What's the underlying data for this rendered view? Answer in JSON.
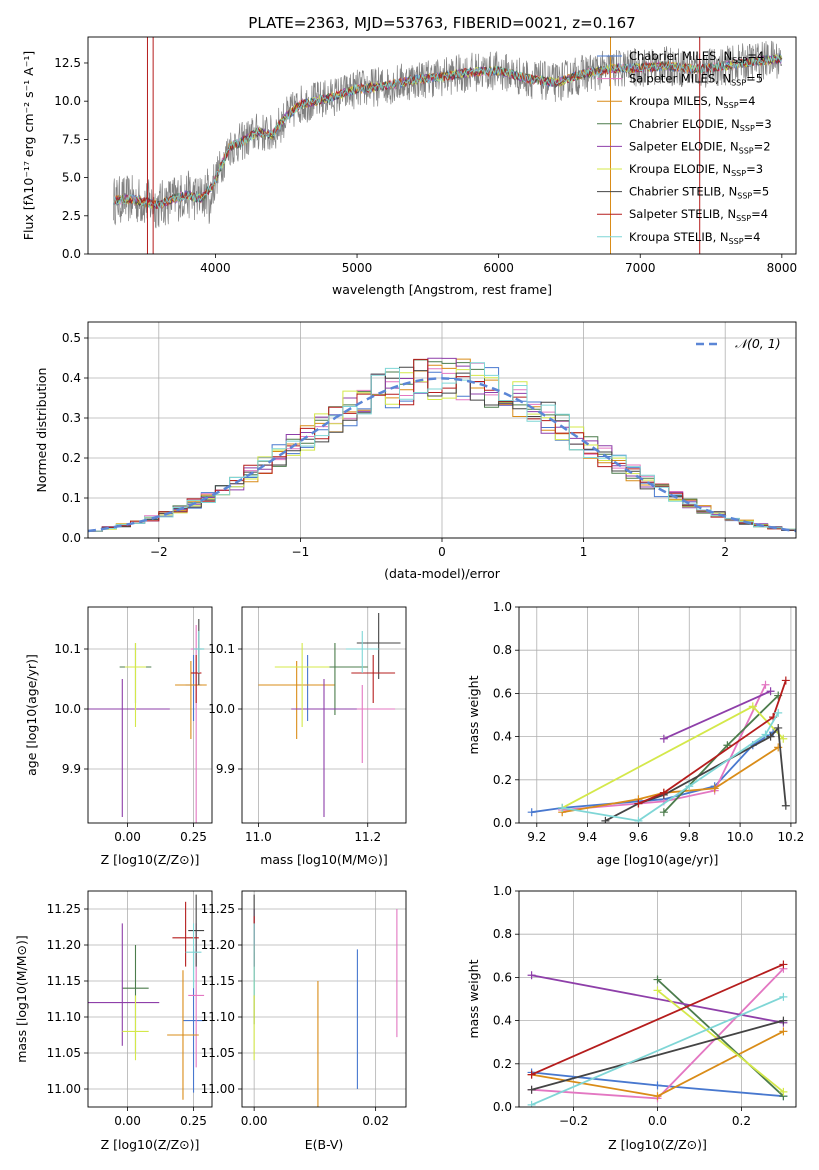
{
  "chart_data": [
    {
      "type": "line",
      "title": "PLATE=2363, MJD=53763, FIBERID=0021, z=0.167",
      "xlabel": "wavelength [Angstrom, rest frame]",
      "ylabel": "Flux [fλ10⁻¹⁷ erg cm⁻² s⁻¹ A⁻¹]",
      "xlim": [
        3100,
        8100
      ],
      "ylim": [
        0,
        14.2
      ],
      "xticks": [
        4000,
        5000,
        6000,
        7000,
        8000
      ],
      "yticks": [
        0.0,
        2.5,
        5.0,
        7.5,
        10.0,
        12.5
      ],
      "ytick_labels": [
        "0.0",
        "2.5",
        "5.0",
        "7.5",
        "10.0",
        "12.5"
      ],
      "legend_position": "right",
      "series": [
        {
          "name": "Chabrier MILES, N_SSP=4",
          "color": "#4878cf"
        },
        {
          "name": "Salpeter MILES, N_SSP=5",
          "color": "#e377c2"
        },
        {
          "name": "Kroupa MILES, N_SSP=4",
          "color": "#d98c18"
        },
        {
          "name": "Chabrier ELODIE, N_SSP=3",
          "color": "#4c7c4c"
        },
        {
          "name": "Salpeter ELODIE, N_SSP=2",
          "color": "#8e3fa9"
        },
        {
          "name": "Kroupa ELODIE, N_SSP=3",
          "color": "#d4e84a"
        },
        {
          "name": "Chabrier STELIB, N_SSP=5",
          "color": "#444444"
        },
        {
          "name": "Salpeter STELIB, N_SSP=4",
          "color": "#b51d1d"
        },
        {
          "name": "Kroupa STELIB, N_SSP=4",
          "color": "#7fd6d6"
        }
      ],
      "spectrum_anchors": {
        "wavelength": [
          3280,
          3400,
          3500,
          3600,
          3700,
          3800,
          3900,
          3980,
          4100,
          4200,
          4300,
          4400,
          4500,
          4600,
          4800,
          5000,
          5200,
          5400,
          5600,
          5800,
          6000,
          6200,
          6400,
          6600,
          6800,
          7000,
          7200,
          7400,
          7600,
          7800,
          8000
        ],
        "flux": [
          3.5,
          3.6,
          3.4,
          3.2,
          3.6,
          3.9,
          3.6,
          4.5,
          7.0,
          7.4,
          8.0,
          7.8,
          9.0,
          9.8,
          10.2,
          10.8,
          11.0,
          11.4,
          11.6,
          11.9,
          12.0,
          11.5,
          11.2,
          11.8,
          12.1,
          12.2,
          12.3,
          12.1,
          12.3,
          12.6,
          12.8
        ]
      }
    },
    {
      "type": "histogram",
      "xlabel": "(data-model)/error",
      "ylabel": "Normed distribution",
      "xlim": [
        -2.5,
        2.5
      ],
      "ylim": [
        0,
        0.54
      ],
      "xticks": [
        -2,
        -1,
        0,
        1,
        2
      ],
      "xtick_labels": [
        "−2",
        "−1",
        "0",
        "1",
        "2"
      ],
      "yticks": [
        0.0,
        0.1,
        0.2,
        0.3,
        0.4,
        0.5
      ],
      "ytick_labels": [
        "0.0",
        "0.1",
        "0.2",
        "0.3",
        "0.4",
        "0.5"
      ],
      "grid": true,
      "legend": [
        "𝒩(0, 1)"
      ],
      "legend_position": "top-right",
      "bin_width": 0.1,
      "reference_curve": "normal(0,1)"
    },
    {
      "type": "scatter",
      "xlabel": "Z [log10(Z/Z⊙)]",
      "ylabel": "age [log10(age/yr)]",
      "xlim": [
        -0.15,
        0.32
      ],
      "ylim": [
        9.81,
        10.17
      ],
      "xticks": [
        0.0,
        0.25
      ],
      "xtick_labels": [
        "0.00",
        "0.25"
      ],
      "yticks": [
        9.9,
        10.0,
        10.1
      ],
      "ytick_labels": [
        "9.9",
        "10.0",
        "10.1"
      ],
      "grid": true,
      "points": [
        {
          "x": 0.25,
          "y": 10.04,
          "xerr": 0.03,
          "yerr": [
            0.06,
            0.05
          ],
          "color": "#4878cf"
        },
        {
          "x": 0.26,
          "y": 10.1,
          "xerr": 0.02,
          "yerr": [
            0.3,
            0.04
          ],
          "color": "#e377c2"
        },
        {
          "x": 0.24,
          "y": 10.04,
          "xerr": 0.06,
          "yerr": [
            0.09,
            0.04
          ],
          "color": "#d98c18"
        },
        {
          "x": 0.03,
          "y": 10.07,
          "xerr": 0.06,
          "yerr": [
            0.06,
            0.04
          ],
          "color": "#4c7c4c"
        },
        {
          "x": -0.02,
          "y": 10.0,
          "xerr": 0.18,
          "yerr": [
            0.18,
            0.05
          ],
          "color": "#8e3fa9"
        },
        {
          "x": 0.03,
          "y": 10.07,
          "xerr": 0.04,
          "yerr": [
            0.1,
            0.04
          ],
          "color": "#d4e84a"
        },
        {
          "x": 0.27,
          "y": 10.1,
          "xerr": 0.02,
          "yerr": [
            0.06,
            0.05
          ],
          "color": "#444444"
        },
        {
          "x": 0.26,
          "y": 10.06,
          "xerr": 0.02,
          "yerr": [
            0.05,
            0.03
          ],
          "color": "#b51d1d"
        },
        {
          "x": 0.27,
          "y": 10.1,
          "xerr": 0.02,
          "yerr": [
            0.04,
            0.03
          ],
          "color": "#7fd6d6"
        }
      ]
    },
    {
      "type": "scatter",
      "xlabel": "mass [log10(M/M⊙)]",
      "ylabel": "",
      "xlim": [
        10.97,
        11.27
      ],
      "ylim": [
        9.81,
        10.17
      ],
      "xticks": [
        11.0,
        11.2
      ],
      "xtick_labels": [
        "11.0",
        "11.2"
      ],
      "yticks": [
        9.9,
        10.0,
        10.1
      ],
      "ytick_labels": [
        "9.9",
        "10.0",
        "10.1"
      ],
      "grid": true,
      "points": [
        {
          "x": 11.09,
          "y": 10.04,
          "xerr": 0.05,
          "yerr": [
            0.06,
            0.05
          ],
          "color": "#4878cf"
        },
        {
          "x": 11.19,
          "y": 10.0,
          "xerr": 0.06,
          "yerr": [
            0.09,
            0.04
          ],
          "color": "#e377c2"
        },
        {
          "x": 11.07,
          "y": 10.04,
          "xerr": 0.07,
          "yerr": [
            0.09,
            0.04
          ],
          "color": "#d98c18"
        },
        {
          "x": 11.14,
          "y": 10.07,
          "xerr": 0.06,
          "yerr": [
            0.08,
            0.04
          ],
          "color": "#4c7c4c"
        },
        {
          "x": 11.12,
          "y": 10.0,
          "xerr": 0.06,
          "yerr": [
            0.18,
            0.05
          ],
          "color": "#8e3fa9"
        },
        {
          "x": 11.08,
          "y": 10.07,
          "xerr": 0.05,
          "yerr": [
            0.1,
            0.04
          ],
          "color": "#d4e84a"
        },
        {
          "x": 11.22,
          "y": 10.11,
          "xerr": 0.04,
          "yerr": [
            0.06,
            0.05
          ],
          "color": "#444444"
        },
        {
          "x": 11.21,
          "y": 10.06,
          "xerr": 0.04,
          "yerr": [
            0.05,
            0.03
          ],
          "color": "#b51d1d"
        },
        {
          "x": 11.19,
          "y": 10.1,
          "xerr": 0.03,
          "yerr": [
            0.04,
            0.03
          ],
          "color": "#7fd6d6"
        }
      ]
    },
    {
      "type": "line",
      "xlabel": "age [log10(age/yr)]",
      "ylabel": "mass weight",
      "xlim": [
        9.13,
        10.22
      ],
      "ylim": [
        0,
        1
      ],
      "xticks": [
        9.2,
        9.4,
        9.6,
        9.8,
        10.0,
        10.2
      ],
      "xtick_labels": [
        "9.2",
        "9.4",
        "9.6",
        "9.8",
        "10.0",
        "10.2"
      ],
      "yticks": [
        0.0,
        0.2,
        0.4,
        0.6,
        0.8,
        1.0
      ],
      "ytick_labels": [
        "0.0",
        "0.2",
        "0.4",
        "0.6",
        "0.8",
        "1.0"
      ],
      "grid": true,
      "series": [
        {
          "color": "#4878cf",
          "x": [
            9.18,
            9.3,
            9.7,
            9.9,
            10.05,
            10.13
          ],
          "y": [
            0.05,
            0.07,
            0.11,
            0.17,
            0.36,
            0.42
          ]
        },
        {
          "color": "#e377c2",
          "x": [
            9.3,
            9.7,
            9.9,
            10.1
          ],
          "y": [
            0.06,
            0.1,
            0.15,
            0.64
          ]
        },
        {
          "color": "#d98c18",
          "x": [
            9.3,
            9.6,
            9.7,
            9.9,
            10.15
          ],
          "y": [
            0.05,
            0.11,
            0.14,
            0.16,
            0.35
          ]
        },
        {
          "color": "#4c7c4c",
          "x": [
            9.7,
            9.95,
            10.15
          ],
          "y": [
            0.05,
            0.36,
            0.59
          ]
        },
        {
          "color": "#8e3fa9",
          "x": [
            9.7,
            10.12
          ],
          "y": [
            0.39,
            0.61
          ]
        },
        {
          "color": "#d4e84a",
          "x": [
            9.3,
            10.05,
            10.17
          ],
          "y": [
            0.07,
            0.54,
            0.39
          ]
        },
        {
          "color": "#444444",
          "x": [
            9.47,
            9.6,
            9.7,
            10.12,
            10.15,
            10.18
          ],
          "y": [
            0.01,
            0.09,
            0.13,
            0.4,
            0.44,
            0.08
          ]
        },
        {
          "color": "#b51d1d",
          "x": [
            9.6,
            9.7,
            10.13,
            10.18
          ],
          "y": [
            0.09,
            0.14,
            0.49,
            0.66
          ]
        },
        {
          "color": "#7fd6d6",
          "x": [
            9.3,
            9.6,
            9.8,
            10.1,
            10.15
          ],
          "y": [
            0.07,
            0.01,
            0.17,
            0.41,
            0.51
          ]
        }
      ]
    },
    {
      "type": "scatter",
      "xlabel": "Z [log10(Z/Z⊙)]",
      "ylabel": "mass [log10(M/M⊙)]",
      "xlim": [
        -0.15,
        0.32
      ],
      "ylim": [
        10.975,
        11.275
      ],
      "xticks": [
        0.0,
        0.25
      ],
      "xtick_labels": [
        "0.00",
        "0.25"
      ],
      "yticks": [
        11.0,
        11.05,
        11.1,
        11.15,
        11.2,
        11.25
      ],
      "ytick_labels": [
        "11.00",
        "11.05",
        "11.10",
        "11.15",
        "11.20",
        "11.25"
      ],
      "grid": true,
      "points": [
        {
          "x": 0.25,
          "y": 11.095,
          "xerr": 0.04,
          "yerr": [
            0.1,
            0.1
          ],
          "color": "#4878cf"
        },
        {
          "x": 0.26,
          "y": 11.13,
          "xerr": 0.03,
          "yerr": [
            0.1,
            0.1
          ],
          "color": "#e377c2"
        },
        {
          "x": 0.21,
          "y": 11.075,
          "xerr": 0.06,
          "yerr": [
            0.09,
            0.09
          ],
          "color": "#d98c18"
        },
        {
          "x": 0.03,
          "y": 11.14,
          "xerr": 0.05,
          "yerr": [
            0.09,
            0.06
          ],
          "color": "#4c7c4c"
        },
        {
          "x": -0.02,
          "y": 11.12,
          "xerr": 0.14,
          "yerr": [
            0.06,
            0.11
          ],
          "color": "#8e3fa9"
        },
        {
          "x": 0.03,
          "y": 11.08,
          "xerr": 0.05,
          "yerr": [
            0.04,
            0.05
          ],
          "color": "#d4e84a"
        },
        {
          "x": 0.26,
          "y": 11.22,
          "xerr": 0.03,
          "yerr": [
            0.05,
            0.05
          ],
          "color": "#444444"
        },
        {
          "x": 0.22,
          "y": 11.21,
          "xerr": 0.05,
          "yerr": [
            0.04,
            0.05
          ],
          "color": "#b51d1d"
        },
        {
          "x": 0.25,
          "y": 11.19,
          "xerr": 0.03,
          "yerr": [
            0.05,
            0.04
          ],
          "color": "#7fd6d6"
        }
      ]
    },
    {
      "type": "scatter",
      "xlabel": "E(B-V)",
      "ylabel": "",
      "xlim": [
        -0.002,
        0.025
      ],
      "ylim": [
        10.975,
        11.275
      ],
      "xticks": [
        0.0,
        0.02
      ],
      "xtick_labels": [
        "0.00",
        "0.02"
      ],
      "yticks": [
        11.0,
        11.05,
        11.1,
        11.15,
        11.2,
        11.25
      ],
      "ytick_labels": [
        "11.00",
        "11.05",
        "11.10",
        "11.15",
        "11.20",
        "11.25"
      ],
      "grid": true,
      "points": [
        {
          "x": 0.017,
          "y": 11.097,
          "yerr": [
            0.097,
            0.097
          ],
          "color": "#4878cf"
        },
        {
          "x": 0.0235,
          "y": 11.162,
          "yerr": [
            0.09,
            0.088
          ],
          "color": "#e377c2"
        },
        {
          "x": 0.0105,
          "y": 11.075,
          "yerr": [
            0.1,
            0.075
          ],
          "color": "#d98c18"
        },
        {
          "x": 0.0,
          "y": 11.14,
          "yerr": [
            0.05,
            0.05
          ],
          "color": "#4c7c4c"
        },
        {
          "x": 0.0,
          "y": 11.2,
          "yerr": [
            0.05,
            0.05
          ],
          "color": "#8e3fa9"
        },
        {
          "x": 0.0,
          "y": 11.12,
          "yerr": [
            0.08,
            0.08
          ],
          "color": "#d4e84a"
        },
        {
          "x": 0.0,
          "y": 11.22,
          "yerr": [
            0.05,
            0.05
          ],
          "color": "#444444"
        },
        {
          "x": 0.0,
          "y": 11.22,
          "yerr": [
            0.05,
            0.02
          ],
          "color": "#b51d1d"
        },
        {
          "x": 0.0,
          "y": 11.18,
          "yerr": [
            0.05,
            0.05
          ],
          "color": "#7fd6d6"
        }
      ]
    },
    {
      "type": "line",
      "xlabel": "Z [log10(Z/Z⊙)]",
      "ylabel": "mass weight",
      "xlim": [
        -0.33,
        0.33
      ],
      "ylim": [
        0,
        1
      ],
      "xticks": [
        -0.2,
        0.0,
        0.2
      ],
      "xtick_labels": [
        "−0.2",
        "0.0",
        "0.2"
      ],
      "yticks": [
        0.0,
        0.2,
        0.4,
        0.6,
        0.8,
        1.0
      ],
      "ytick_labels": [
        "0.0",
        "0.2",
        "0.4",
        "0.6",
        "0.8",
        "1.0"
      ],
      "grid": true,
      "series": [
        {
          "color": "#4878cf",
          "x": [
            -0.3,
            0.0,
            0.3
          ],
          "y": [
            0.16,
            0.1,
            0.05
          ]
        },
        {
          "color": "#e377c2",
          "x": [
            -0.3,
            0.0,
            0.3
          ],
          "y": [
            0.08,
            0.04,
            0.64
          ]
        },
        {
          "color": "#d98c18",
          "x": [
            -0.3,
            0.0,
            0.3
          ],
          "y": [
            0.15,
            0.05,
            0.35
          ]
        },
        {
          "color": "#4c7c4c",
          "x": [
            0.0,
            0.3
          ],
          "y": [
            0.59,
            0.05
          ]
        },
        {
          "color": "#8e3fa9",
          "x": [
            -0.3,
            0.3
          ],
          "y": [
            0.61,
            0.39
          ]
        },
        {
          "color": "#d4e84a",
          "x": [
            0.0,
            0.3
          ],
          "y": [
            0.54,
            0.07
          ]
        },
        {
          "color": "#444444",
          "x": [
            -0.3,
            0.3
          ],
          "y": [
            0.08,
            0.4
          ]
        },
        {
          "color": "#b51d1d",
          "x": [
            -0.3,
            0.3
          ],
          "y": [
            0.15,
            0.66
          ]
        },
        {
          "color": "#7fd6d6",
          "x": [
            -0.3,
            0.3
          ],
          "y": [
            0.01,
            0.51
          ]
        }
      ]
    }
  ]
}
